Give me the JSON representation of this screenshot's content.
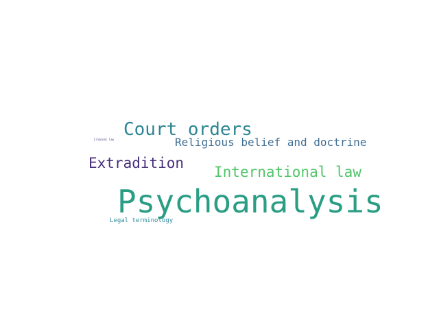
{
  "words": [
    {
      "text": "Psychoanalysis",
      "color": "#2a9d84"
    },
    {
      "text": "Court orders",
      "color": "#2d8593"
    },
    {
      "text": "Religious belief and doctrine",
      "color": "#3f6e94"
    },
    {
      "text": "Extradition",
      "color": "#472e7a"
    },
    {
      "text": "International law",
      "color": "#52c56a"
    },
    {
      "text": "Legal terminology",
      "color": "#2b8b9a"
    },
    {
      "text": "Criminal law",
      "color": "#43357f"
    }
  ]
}
